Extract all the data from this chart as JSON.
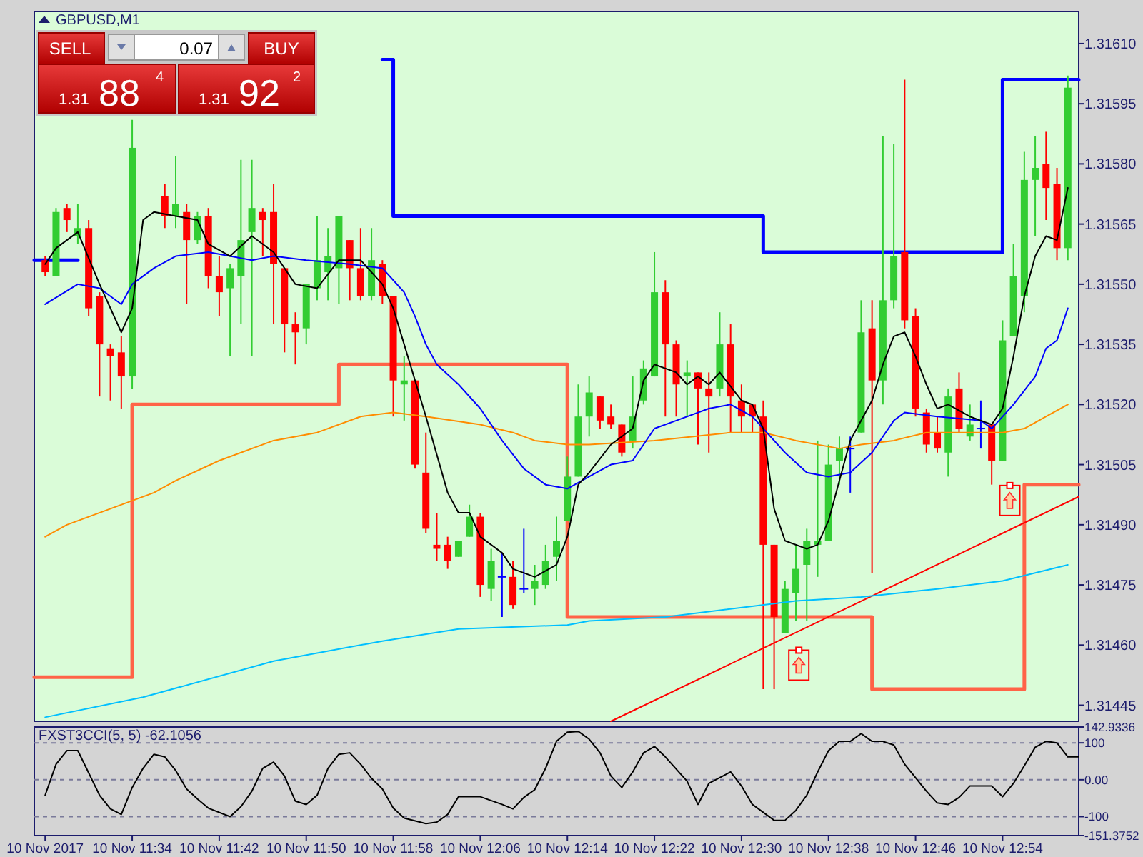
{
  "chart_data": [
    {
      "type": "candlestick",
      "title": "GBPUSD,M1",
      "tick_labels": "y",
      "xlim": [
        "2017-11-10T11:25",
        "2017-11-10T13:01"
      ],
      "ylim": [
        1.31441,
        1.31618
      ],
      "yticks": [
        {
          "value": 1.3161,
          "label": "1.31610"
        },
        1.31595,
        {
          "value": 1.3158,
          "label": "1.31580"
        },
        1.31565,
        {
          "value": 1.3155,
          "label": "1.31550"
        },
        1.31535,
        {
          "value": 1.3152,
          "label": "1.31520"
        },
        1.31505,
        {
          "value": 1.3149,
          "label": "1.31490"
        },
        1.31475,
        {
          "value": 1.3146,
          "label": "1.31460"
        },
        1.31445
      ],
      "annotations": [
        "SELL",
        "0.07",
        "BUY",
        "1.31",
        "88",
        "4",
        "1.31",
        "92",
        "2"
      ],
      "x": [
        "2017-11-10T11:26",
        "2017-11-10T11:27",
        "2017-11-10T11:28",
        "2017-11-10T11:29",
        "2017-11-10T11:30",
        "2017-11-10T11:31",
        "2017-11-10T11:32",
        "2017-11-10T11:33",
        "2017-11-10T11:34",
        "2017-11-10T11:37",
        "2017-11-10T11:38",
        "2017-11-10T11:39",
        "2017-11-10T11:40",
        "2017-11-10T11:41",
        "2017-11-10T11:42",
        "2017-11-10T11:43",
        "2017-11-10T11:44",
        "2017-11-10T11:45",
        "2017-11-10T11:46",
        "2017-11-10T11:47",
        "2017-11-10T11:48",
        "2017-11-10T11:49",
        "2017-11-10T11:50",
        "2017-11-10T11:51",
        "2017-11-10T11:52",
        "2017-11-10T11:53",
        "2017-11-10T11:54",
        "2017-11-10T11:55",
        "2017-11-10T11:56",
        "2017-11-10T11:57",
        "2017-11-10T11:58",
        "2017-11-10T11:59",
        "2017-11-10T12:00",
        "2017-11-10T12:01",
        "2017-11-10T12:02",
        "2017-11-10T12:03",
        "2017-11-10T12:04",
        "2017-11-10T12:05",
        "2017-11-10T12:06",
        "2017-11-10T12:07",
        "2017-11-10T12:08",
        "2017-11-10T12:09",
        "2017-11-10T12:10",
        "2017-11-10T12:11",
        "2017-11-10T12:12",
        "2017-11-10T12:13",
        "2017-11-10T12:14",
        "2017-11-10T12:15",
        "2017-11-10T12:16",
        "2017-11-10T12:17",
        "2017-11-10T12:18",
        "2017-11-10T12:19",
        "2017-11-10T12:20",
        "2017-11-10T12:21",
        "2017-11-10T12:22",
        "2017-11-10T12:23",
        "2017-11-10T12:24",
        "2017-11-10T12:25",
        "2017-11-10T12:26",
        "2017-11-10T12:27",
        "2017-11-10T12:28",
        "2017-11-10T12:29",
        "2017-11-10T12:30",
        "2017-11-10T12:31",
        "2017-11-10T12:32",
        "2017-11-10T12:33",
        "2017-11-10T12:34",
        "2017-11-10T12:35",
        "2017-11-10T12:36",
        "2017-11-10T12:37",
        "2017-11-10T12:38",
        "2017-11-10T12:39",
        "2017-11-10T12:40",
        "2017-11-10T12:41",
        "2017-11-10T12:42",
        "2017-11-10T12:43",
        "2017-11-10T12:44",
        "2017-11-10T12:45",
        "2017-11-10T12:46",
        "2017-11-10T12:47",
        "2017-11-10T12:48",
        "2017-11-10T12:49",
        "2017-11-10T12:50",
        "2017-11-10T12:51",
        "2017-11-10T12:52",
        "2017-11-10T12:53",
        "2017-11-10T12:54",
        "2017-11-10T12:55",
        "2017-11-10T12:56",
        "2017-11-10T12:57",
        "2017-11-10T12:58",
        "2017-11-10T12:59",
        "2017-11-10T13:00"
      ],
      "ohlc": [
        [
          1.31556,
          1.31557,
          1.31552,
          1.31553
        ],
        [
          1.31552,
          1.31569,
          1.31552,
          1.31568
        ],
        [
          1.31569,
          1.3157,
          1.31563,
          1.31566
        ],
        [
          1.31562,
          1.3157,
          1.3156,
          1.31564
        ],
        [
          1.31564,
          1.31566,
          1.31542,
          1.31544
        ],
        [
          1.31547,
          1.31548,
          1.31522,
          1.31535
        ],
        [
          1.31534,
          1.31535,
          1.31521,
          1.31532
        ],
        [
          1.31533,
          1.31537,
          1.31519,
          1.31527
        ],
        [
          1.31527,
          1.31591,
          1.31524,
          1.31584
        ],
        [
          1.31572,
          1.31575,
          1.31564,
          1.31567
        ],
        [
          1.31567,
          1.31582,
          1.31564,
          1.3157
        ],
        [
          1.31568,
          1.3157,
          1.31545,
          1.31561
        ],
        [
          1.31561,
          1.31568,
          1.3156,
          1.31567
        ],
        [
          1.31567,
          1.31569,
          1.31549,
          1.31552
        ],
        [
          1.31552,
          1.31557,
          1.31542,
          1.31548
        ],
        [
          1.31549,
          1.31555,
          1.31532,
          1.31554
        ],
        [
          1.31552,
          1.31581,
          1.3154,
          1.31561
        ],
        [
          1.31563,
          1.31581,
          1.31532,
          1.31569
        ],
        [
          1.31568,
          1.31569,
          1.31557,
          1.31566
        ],
        [
          1.31568,
          1.31575,
          1.3154,
          1.31555
        ],
        [
          1.31554,
          1.31554,
          1.31533,
          1.3154
        ],
        [
          1.3154,
          1.31543,
          1.3153,
          1.31538
        ],
        [
          1.31539,
          1.3155,
          1.31535,
          1.3155
        ],
        [
          1.31549,
          1.31567,
          1.31546,
          1.31556
        ],
        [
          1.31553,
          1.31564,
          1.31546,
          1.31557
        ],
        [
          1.31554,
          1.31567,
          1.31545,
          1.31567
        ],
        [
          1.31561,
          1.31561,
          1.31546,
          1.31554
        ],
        [
          1.31554,
          1.31564,
          1.31546,
          1.31547
        ],
        [
          1.31547,
          1.31564,
          1.31546,
          1.31556
        ],
        [
          1.31555,
          1.31556,
          1.31545,
          1.31547
        ],
        [
          1.31547,
          1.31547,
          1.31517,
          1.31526
        ],
        [
          1.31525,
          1.31532,
          1.31516,
          1.31526
        ],
        [
          1.31526,
          1.31526,
          1.31504,
          1.31505
        ],
        [
          1.31503,
          1.31513,
          1.31488,
          1.31489
        ],
        [
          1.31485,
          1.31493,
          1.31481,
          1.31484
        ],
        [
          1.31485,
          1.31487,
          1.31479,
          1.31481
        ],
        [
          1.31482,
          1.31486,
          1.31482,
          1.31486
        ],
        [
          1.31487,
          1.31495,
          1.31487,
          1.31492
        ],
        [
          1.31492,
          1.31493,
          1.31472,
          1.31475
        ],
        [
          1.31474,
          1.31484,
          1.31471,
          1.31481
        ],
        [
          1.31477,
          1.31483,
          1.31467,
          1.31477
        ],
        [
          1.31477,
          1.31481,
          1.31469,
          1.3147
        ],
        [
          1.31474,
          1.31489,
          1.31473,
          1.31474
        ],
        [
          1.31474,
          1.3148,
          1.3147,
          1.31476
        ],
        [
          1.31475,
          1.31485,
          1.31474,
          1.31481
        ],
        [
          1.31482,
          1.31492,
          1.31476,
          1.31486
        ],
        [
          1.31491,
          1.31507,
          1.31491,
          1.31502
        ],
        [
          1.31502,
          1.31525,
          1.31502,
          1.31517
        ],
        [
          1.31517,
          1.31527,
          1.31512,
          1.31523
        ],
        [
          1.31522,
          1.31522,
          1.31514,
          1.31516
        ],
        [
          1.31517,
          1.3152,
          1.31514,
          1.31515
        ],
        [
          1.31515,
          1.31515,
          1.31507,
          1.31508
        ],
        [
          1.31511,
          1.31527,
          1.31509,
          1.31517
        ],
        [
          1.31521,
          1.31531,
          1.3152,
          1.31529
        ],
        [
          1.31527,
          1.31558,
          1.31527,
          1.31548
        ],
        [
          1.31548,
          1.31551,
          1.31517,
          1.31535
        ],
        [
          1.31535,
          1.31536,
          1.31517,
          1.31525
        ],
        [
          1.31527,
          1.31531,
          1.31517,
          1.31528
        ],
        [
          1.31528,
          1.31528,
          1.3151,
          1.31524
        ],
        [
          1.31524,
          1.31528,
          1.31508,
          1.31522
        ],
        [
          1.31524,
          1.31543,
          1.31522,
          1.31535
        ],
        [
          1.31535,
          1.3154,
          1.31513,
          1.31522
        ],
        [
          1.31521,
          1.31525,
          1.31513,
          1.31517
        ],
        [
          1.3152,
          1.3152,
          1.31513,
          1.31517
        ],
        [
          1.31517,
          1.31521,
          1.31449,
          1.31485
        ],
        [
          1.31485,
          1.31485,
          1.31449,
          1.31467
        ],
        [
          1.31463,
          1.31476,
          1.31463,
          1.31474
        ],
        [
          1.31473,
          1.31485,
          1.31466,
          1.31479
        ],
        [
          1.3148,
          1.31489,
          1.31466,
          1.31486
        ],
        [
          1.31485,
          1.31511,
          1.31477,
          1.31486
        ],
        [
          1.31486,
          1.3151,
          1.31486,
          1.31505
        ],
        [
          1.31506,
          1.31512,
          1.315,
          1.31509
        ],
        [
          1.31509,
          1.31512,
          1.31498,
          1.31509
        ],
        [
          1.31513,
          1.31546,
          1.31513,
          1.31538
        ],
        [
          1.31539,
          1.31546,
          1.31478,
          1.31526
        ],
        [
          1.31526,
          1.31587,
          1.3152,
          1.31546
        ],
        [
          1.31546,
          1.31585,
          1.31544,
          1.31557
        ],
        [
          1.31558,
          1.31601,
          1.31539,
          1.31541
        ],
        [
          1.31542,
          1.31544,
          1.31517,
          1.31519
        ],
        [
          1.31518,
          1.31519,
          1.31508,
          1.3151
        ],
        [
          1.31513,
          1.31517,
          1.31508,
          1.31509
        ],
        [
          1.31508,
          1.31524,
          1.31502,
          1.31522
        ],
        [
          1.31524,
          1.31528,
          1.31513,
          1.31514
        ],
        [
          1.31512,
          1.3152,
          1.31511,
          1.31515
        ],
        [
          1.31514,
          1.31521,
          1.31509,
          1.31514
        ],
        [
          1.31515,
          1.31515,
          1.315,
          1.31506
        ],
        [
          1.31506,
          1.31541,
          1.31506,
          1.31536
        ],
        [
          1.31537,
          1.3156,
          1.31537,
          1.31552
        ],
        [
          1.31547,
          1.31583,
          1.31543,
          1.31576
        ],
        [
          1.31576,
          1.31587,
          1.31562,
          1.31579
        ],
        [
          1.3158,
          1.31588,
          1.31566,
          1.31574
        ],
        [
          1.31575,
          1.31579,
          1.31556,
          1.31559
        ],
        [
          1.31559,
          1.31602,
          1.31556,
          1.31599
        ]
      ],
      "series": [
        {
          "type": "step",
          "color": "#0000ff",
          "x": [
            "2017-11-10T11:25",
            "2017-11-10T11:29",
            "2017-11-10T11:30",
            "2017-11-10T11:57",
            "2017-11-10T11:58",
            "2017-11-10T12:31",
            "2017-11-10T12:32",
            "2017-11-10T12:53",
            "2017-11-10T12:54",
            "2017-11-10T13:01"
          ],
          "values": [
            1.31556,
            1.31556,
            null,
            1.31606,
            1.31567,
            1.31567,
            1.31558,
            1.31558,
            1.31601,
            1.31601
          ]
        },
        {
          "type": "step",
          "color": "#ff6347",
          "x": [
            "2017-11-10T11:25",
            "2017-11-10T11:33",
            "2017-11-10T11:34",
            "2017-11-10T11:52",
            "2017-11-10T11:53",
            "2017-11-10T12:13",
            "2017-11-10T12:14",
            "2017-11-10T12:41",
            "2017-11-10T12:42",
            "2017-11-10T12:55",
            "2017-11-10T12:56",
            "2017-11-10T13:01"
          ],
          "values": [
            1.31452,
            1.31452,
            1.3152,
            1.3152,
            1.3153,
            1.3153,
            1.31467,
            1.31467,
            1.31449,
            1.31449,
            1.315,
            1.315
          ]
        },
        {
          "type": "line",
          "color": "#ff0000",
          "x": [
            "2017-11-10T12:18",
            "2017-11-10T13:01"
          ],
          "values": [
            1.31441,
            1.31497
          ]
        },
        {
          "type": "line",
          "color": "#00bfff",
          "x": [
            "2017-11-10T11:26",
            "2017-11-10T11:35",
            "2017-11-10T11:47",
            "2017-11-10T11:57",
            "2017-11-10T12:04",
            "2017-11-10T12:14",
            "2017-11-10T12:16",
            "2017-11-10T12:23",
            "2017-11-10T12:35",
            "2017-11-10T12:41",
            "2017-11-10T12:48",
            "2017-11-10T12:54",
            "2017-11-10T13:00"
          ],
          "values": [
            1.31442,
            1.31447,
            1.31456,
            1.31461,
            1.31464,
            1.31465,
            1.31466,
            1.31467,
            1.31471,
            1.31472,
            1.31474,
            1.31476,
            1.3148
          ]
        },
        {
          "type": "line",
          "color": "#ff8c00",
          "x": [
            "2017-11-10T11:26",
            "2017-11-10T11:28",
            "2017-11-10T11:32",
            "2017-11-10T11:36",
            "2017-11-10T11:38",
            "2017-11-10T11:42",
            "2017-11-10T11:47",
            "2017-11-10T11:51",
            "2017-11-10T11:55",
            "2017-11-10T11:58",
            "2017-11-10T12:01",
            "2017-11-10T12:06",
            "2017-11-10T12:09",
            "2017-11-10T12:11",
            "2017-11-10T12:14",
            "2017-11-10T12:16",
            "2017-11-10T12:22",
            "2017-11-10T12:29",
            "2017-11-10T12:32",
            "2017-11-10T12:35",
            "2017-11-10T12:39",
            "2017-11-10T12:41",
            "2017-11-10T12:44",
            "2017-11-10T12:47",
            "2017-11-10T12:54",
            "2017-11-10T12:56",
            "2017-11-10T12:58",
            "2017-11-10T13:00"
          ],
          "values": [
            1.31487,
            1.3149,
            1.31494,
            1.31498,
            1.31501,
            1.31506,
            1.31511,
            1.31513,
            1.31517,
            1.31518,
            1.31517,
            1.31515,
            1.31513,
            1.31511,
            1.3151,
            1.3151,
            1.31511,
            1.31513,
            1.31513,
            1.31511,
            1.31509,
            1.3151,
            1.31511,
            1.31513,
            1.31513,
            1.31514,
            1.31517,
            1.3152
          ]
        },
        {
          "type": "line",
          "color": "#0000ff",
          "x": [
            "2017-11-10T11:26",
            "2017-11-10T11:29",
            "2017-11-10T11:31",
            "2017-11-10T11:33",
            "2017-11-10T11:34",
            "2017-11-10T11:35",
            "2017-11-10T11:36",
            "2017-11-10T11:38",
            "2017-11-10T11:41",
            "2017-11-10T11:43",
            "2017-11-10T11:45",
            "2017-11-10T11:47",
            "2017-11-10T11:50",
            "2017-11-10T11:54",
            "2017-11-10T11:57",
            "2017-11-10T11:58",
            "2017-11-10T11:59",
            "2017-11-10T12:00",
            "2017-11-10T12:01",
            "2017-11-10T12:02",
            "2017-11-10T12:04",
            "2017-11-10T12:06",
            "2017-11-10T12:08",
            "2017-11-10T12:10",
            "2017-11-10T12:12",
            "2017-11-10T12:14",
            "2017-11-10T12:16",
            "2017-11-10T12:18",
            "2017-11-10T12:20",
            "2017-11-10T12:22",
            "2017-11-10T12:24",
            "2017-11-10T12:27",
            "2017-11-10T12:29",
            "2017-11-10T12:31",
            "2017-11-10T12:32",
            "2017-11-10T12:34",
            "2017-11-10T12:36",
            "2017-11-10T12:38",
            "2017-11-10T12:40",
            "2017-11-10T12:42",
            "2017-11-10T12:44",
            "2017-11-10T12:45",
            "2017-11-10T12:48",
            "2017-11-10T12:52",
            "2017-11-10T12:53",
            "2017-11-10T12:55",
            "2017-11-10T12:57",
            "2017-11-10T12:58",
            "2017-11-10T12:59",
            "2017-11-10T13:00"
          ],
          "values": [
            1.31545,
            1.3155,
            1.31549,
            1.31545,
            1.3155,
            1.31552,
            1.31554,
            1.31557,
            1.31558,
            1.31557,
            1.31556,
            1.31557,
            1.31556,
            1.31555,
            1.31554,
            1.31551,
            1.31548,
            1.31542,
            1.31535,
            1.3153,
            1.31525,
            1.31519,
            1.31511,
            1.31504,
            1.315,
            1.31499,
            1.31502,
            1.31505,
            1.31506,
            1.31514,
            1.31516,
            1.31519,
            1.3152,
            1.31517,
            1.31514,
            1.31508,
            1.31503,
            1.31502,
            1.31503,
            1.31508,
            1.31516,
            1.31518,
            1.31517,
            1.31516,
            1.31514,
            1.3152,
            1.31527,
            1.31534,
            1.31536,
            1.31544
          ]
        },
        {
          "type": "line",
          "color": "#000000",
          "x": [
            "2017-11-10T11:26",
            "2017-11-10T11:27",
            "2017-11-10T11:29",
            "2017-11-10T11:31",
            "2017-11-10T11:33",
            "2017-11-10T11:34",
            "2017-11-10T11:35",
            "2017-11-10T11:36",
            "2017-11-10T11:38",
            "2017-11-10T11:40",
            "2017-11-10T11:41",
            "2017-11-10T11:43",
            "2017-11-10T11:45",
            "2017-11-10T11:47",
            "2017-11-10T11:49",
            "2017-11-10T11:51",
            "2017-11-10T11:53",
            "2017-11-10T11:55",
            "2017-11-10T11:57",
            "2017-11-10T11:58",
            "2017-11-10T11:59",
            "2017-11-10T12:00",
            "2017-11-10T12:01",
            "2017-11-10T12:03",
            "2017-11-10T12:04",
            "2017-11-10T12:05",
            "2017-11-10T12:06",
            "2017-11-10T12:08",
            "2017-11-10T12:09",
            "2017-11-10T12:11",
            "2017-11-10T12:13",
            "2017-11-10T12:14",
            "2017-11-10T12:15",
            "2017-11-10T12:16",
            "2017-11-10T12:18",
            "2017-11-10T12:20",
            "2017-11-10T12:21",
            "2017-11-10T12:22",
            "2017-11-10T12:24",
            "2017-11-10T12:25",
            "2017-11-10T12:26",
            "2017-11-10T12:27",
            "2017-11-10T12:28",
            "2017-11-10T12:30",
            "2017-11-10T12:31",
            "2017-11-10T12:32",
            "2017-11-10T12:33",
            "2017-11-10T12:34",
            "2017-11-10T12:36",
            "2017-11-10T12:37",
            "2017-11-10T12:38",
            "2017-11-10T12:39",
            "2017-11-10T12:40",
            "2017-11-10T12:41",
            "2017-11-10T12:42",
            "2017-11-10T12:43",
            "2017-11-10T12:44",
            "2017-11-10T12:45",
            "2017-11-10T12:46",
            "2017-11-10T12:47",
            "2017-11-10T12:48",
            "2017-11-10T12:49",
            "2017-11-10T12:51",
            "2017-11-10T12:52",
            "2017-11-10T12:53",
            "2017-11-10T12:54",
            "2017-11-10T12:55",
            "2017-11-10T12:56",
            "2017-11-10T12:57",
            "2017-11-10T12:58",
            "2017-11-10T12:59",
            "2017-11-10T13:00"
          ],
          "values": [
            1.31555,
            1.31559,
            1.31563,
            1.3155,
            1.31538,
            1.31544,
            1.31566,
            1.31568,
            1.31567,
            1.31566,
            1.3156,
            1.31557,
            1.31562,
            1.31558,
            1.3155,
            1.31549,
            1.31556,
            1.31556,
            1.3155,
            1.31544,
            1.31535,
            1.31526,
            1.31517,
            1.31498,
            1.31493,
            1.31493,
            1.31487,
            1.31483,
            1.31479,
            1.31477,
            1.3148,
            1.31487,
            1.315,
            1.31503,
            1.3151,
            1.31514,
            1.31526,
            1.3153,
            1.31528,
            1.31525,
            1.31527,
            1.31525,
            1.31528,
            1.31521,
            1.3152,
            1.31514,
            1.31494,
            1.31486,
            1.31484,
            1.31485,
            1.31491,
            1.31501,
            1.31511,
            1.31516,
            1.31521,
            1.3153,
            1.31537,
            1.31538,
            1.31532,
            1.31525,
            1.31519,
            1.3152,
            1.31517,
            1.31516,
            1.31515,
            1.31519,
            1.31532,
            1.31547,
            1.31557,
            1.31562,
            1.31561,
            1.31574
          ]
        }
      ]
    },
    {
      "type": "line",
      "title": "FXST3CCI(5, 5) -62.1056",
      "xlim": [
        "2017-11-10T11:25",
        "2017-11-10T13:01"
      ],
      "ylim": [
        -151.3752,
        142.9336
      ],
      "yticks": [
        142.9336,
        100,
        {
          "value": 0,
          "label": "0.00"
        },
        -100,
        -151.3752
      ],
      "xticks": [
        {
          "value": "2017-11-10T11:26",
          "label": "10 Nov 2017"
        },
        {
          "value": "2017-11-10T11:34",
          "label": "10 Nov 11:34"
        },
        {
          "value": "2017-11-10T11:42",
          "label": "10 Nov 11:42"
        },
        {
          "value": "2017-11-10T11:50",
          "label": "10 Nov 11:50"
        },
        {
          "value": "2017-11-10T11:58",
          "label": "10 Nov 11:58"
        },
        {
          "value": "2017-11-10T12:06",
          "label": "10 Nov 12:06"
        },
        {
          "value": "2017-11-10T12:14",
          "label": "10 Nov 12:14"
        },
        {
          "value": "2017-11-10T12:22",
          "label": "10 Nov 12:22"
        },
        {
          "value": "2017-11-10T12:30",
          "label": "10 Nov 12:30"
        },
        {
          "value": "2017-11-10T12:38",
          "label": "10 Nov 12:38"
        },
        {
          "value": "2017-11-10T12:46",
          "label": "10 Nov 12:46"
        },
        {
          "value": "2017-11-10T12:54",
          "label": "10 Nov 12:54"
        }
      ],
      "ref_lines": [
        {
          "axis": "y",
          "value": 100,
          "color": "#7a7a9a",
          "line_style": "dashed"
        },
        {
          "axis": "y",
          "value": 0,
          "color": "#7a7a9a",
          "line_style": "dashed"
        },
        {
          "axis": "y",
          "value": -100,
          "color": "#7a7a9a",
          "line_style": "dashed"
        }
      ],
      "series": [
        {
          "color": "#000000",
          "x": [
            "2017-11-10T11:26",
            "2017-11-10T11:27",
            "2017-11-10T11:28",
            "2017-11-10T11:29",
            "2017-11-10T11:31",
            "2017-11-10T11:32",
            "2017-11-10T11:33",
            "2017-11-10T11:34",
            "2017-11-10T11:35",
            "2017-11-10T11:36",
            "2017-11-10T11:37",
            "2017-11-10T11:38",
            "2017-11-10T11:39",
            "2017-11-10T11:40",
            "2017-11-10T11:41",
            "2017-11-10T11:43",
            "2017-11-10T11:44",
            "2017-11-10T11:45",
            "2017-11-10T11:46",
            "2017-11-10T11:47",
            "2017-11-10T11:48",
            "2017-11-10T11:49",
            "2017-11-10T11:50",
            "2017-11-10T11:51",
            "2017-11-10T11:52",
            "2017-11-10T11:53",
            "2017-11-10T11:54",
            "2017-11-10T11:55",
            "2017-11-10T11:56",
            "2017-11-10T11:57",
            "2017-11-10T11:58",
            "2017-11-10T11:59",
            "2017-11-10T12:01",
            "2017-11-10T12:02",
            "2017-11-10T12:03",
            "2017-11-10T12:04",
            "2017-11-10T12:06",
            "2017-11-10T12:08",
            "2017-11-10T12:09",
            "2017-11-10T12:10",
            "2017-11-10T12:11",
            "2017-11-10T12:12",
            "2017-11-10T12:13",
            "2017-11-10T12:14",
            "2017-11-10T12:15",
            "2017-11-10T12:16",
            "2017-11-10T12:17",
            "2017-11-10T12:18",
            "2017-11-10T12:19",
            "2017-11-10T12:20",
            "2017-11-10T12:21",
            "2017-11-10T12:22",
            "2017-11-10T12:23",
            "2017-11-10T12:25",
            "2017-11-10T12:26",
            "2017-11-10T12:27",
            "2017-11-10T12:29",
            "2017-11-10T12:30",
            "2017-11-10T12:31",
            "2017-11-10T12:33",
            "2017-11-10T12:34",
            "2017-11-10T12:35",
            "2017-11-10T12:36",
            "2017-11-10T12:37",
            "2017-11-10T12:38",
            "2017-11-10T12:39",
            "2017-11-10T12:40",
            "2017-11-10T12:41",
            "2017-11-10T12:42",
            "2017-11-10T12:43",
            "2017-11-10T12:44",
            "2017-11-10T12:45",
            "2017-11-10T12:47",
            "2017-11-10T12:48",
            "2017-11-10T12:49",
            "2017-11-10T12:50",
            "2017-11-10T12:51",
            "2017-11-10T12:53",
            "2017-11-10T12:54",
            "2017-11-10T12:55",
            "2017-11-10T12:56",
            "2017-11-10T12:57",
            "2017-11-10T12:58",
            "2017-11-10T12:59",
            "2017-11-10T13:00",
            "2017-11-10T13:01"
          ],
          "values": [
            -42,
            42,
            79,
            79,
            -42,
            -79,
            -94,
            -21,
            31,
            69,
            62,
            25,
            -25,
            -52,
            -77,
            -100,
            -73,
            -31,
            31,
            48,
            10,
            -58,
            -67,
            -42,
            31,
            69,
            73,
            42,
            4,
            -25,
            -77,
            -104,
            -119,
            -115,
            -94,
            -46,
            -46,
            -67,
            -79,
            -48,
            -27,
            31,
            104,
            129,
            131,
            110,
            73,
            10,
            -21,
            21,
            73,
            90,
            62,
            -4,
            -67,
            -10,
            21,
            -17,
            -67,
            -110,
            -110,
            -83,
            -42,
            21,
            79,
            104,
            104,
            125,
            104,
            104,
            94,
            42,
            -31,
            -63,
            -67,
            -48,
            -17,
            -17,
            -46,
            -10,
            38,
            88,
            104,
            100,
            62,
            62
          ]
        }
      ]
    }
  ]
}
